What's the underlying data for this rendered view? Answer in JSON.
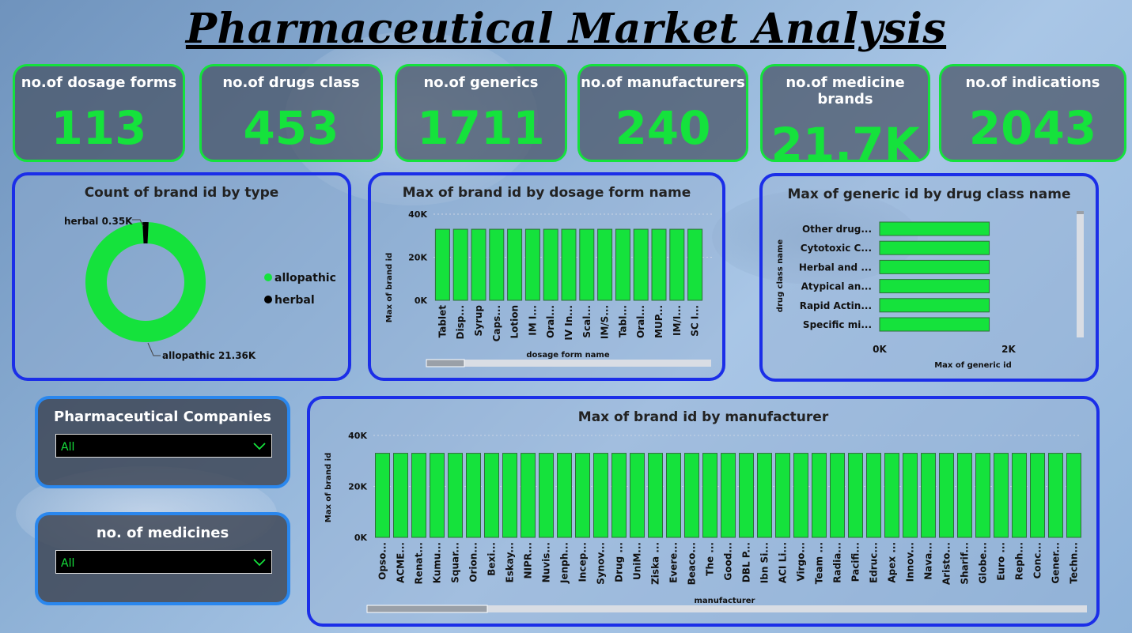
{
  "title": "Pharmaceutical Market Analysis",
  "colors": {
    "accent": "#15e23c",
    "panel_border": "#1b2ee8",
    "slicer_border": "#2a87ee"
  },
  "kpis": [
    {
      "label": "no.of dosage forms",
      "value": "113"
    },
    {
      "label": "no.of drugs class",
      "value": "453"
    },
    {
      "label": "no.of generics",
      "value": "1711"
    },
    {
      "label": "no.of manufacturers",
      "value": "240"
    },
    {
      "label": "no.of medicine brands",
      "value": "21.7K"
    },
    {
      "label": "no.of indications",
      "value": "2043"
    }
  ],
  "donut": {
    "title": "Count of brand id by type",
    "legend": [
      "allopathic",
      "herbal"
    ],
    "label_herbal": "herbal 0.35K",
    "label_allopathic": "allopathic 21.36K"
  },
  "dosage": {
    "title": "Max of brand id by dosage form name",
    "ylabel": "Max of brand id",
    "xlabel": "dosage form name",
    "ticks": [
      "40K",
      "20K",
      "0K"
    ]
  },
  "drugclass": {
    "title": "Max of generic id by drug class name",
    "ylabel": "drug class name",
    "xlabel": "Max of generic id",
    "ticks": [
      "0K",
      "2K"
    ]
  },
  "manufacturer": {
    "title": "Max of brand id by manufacturer",
    "ylabel": "Max of brand id",
    "xlabel": "manufacturer",
    "ticks": [
      "40K",
      "20K",
      "0K"
    ]
  },
  "slicers": [
    {
      "title": "Pharmaceutical Companies",
      "value": "All"
    },
    {
      "title": "no. of medicines",
      "value": "All"
    }
  ],
  "chart_data": [
    {
      "type": "pie",
      "title": "Count of brand id by type",
      "categories": [
        "allopathic",
        "herbal"
      ],
      "values": [
        21360,
        350
      ],
      "colors": [
        "#15e23c",
        "#000000"
      ],
      "legend": "right"
    },
    {
      "type": "bar",
      "title": "Max of brand id by dosage form name",
      "categories": [
        "Tablet",
        "Disp...",
        "Syrup",
        "Caps...",
        "Lotion",
        "IM I...",
        "Oral...",
        "IV In...",
        "Scal...",
        "IM/S...",
        "Tabl...",
        "Oral...",
        "MUP...",
        "IM/I...",
        "SC I..."
      ],
      "values": [
        33000,
        33000,
        33000,
        33000,
        33000,
        33000,
        33000,
        33000,
        33000,
        33000,
        33000,
        33000,
        33000,
        33000,
        33000
      ],
      "xlabel": "dosage form name",
      "ylabel": "Max of brand id",
      "ylim": [
        0,
        40000
      ]
    },
    {
      "type": "bar",
      "orientation": "horizontal",
      "title": "Max of generic id by drug class name",
      "categories": [
        "Other drug...",
        "Cytotoxic C...",
        "Herbal and ...",
        "Atypical an...",
        "Rapid Actin...",
        "Specific mi..."
      ],
      "values": [
        1700,
        1700,
        1700,
        1700,
        1700,
        1700
      ],
      "xlabel": "Max of generic id",
      "ylabel": "drug class name",
      "xlim": [
        0,
        2000
      ]
    },
    {
      "type": "bar",
      "title": "Max of brand id by manufacturer",
      "categories": [
        "Opso...",
        "ACME...",
        "Renat...",
        "Kumu...",
        "Squar...",
        "Orion...",
        "Bexi...",
        "Eskay...",
        "NIPR...",
        "Nuvis...",
        "Jenph...",
        "Incep...",
        "Synov...",
        "Drug ...",
        "UniM...",
        "Ziska ...",
        "Evere...",
        "Beaco...",
        "The ...",
        "Good...",
        "DBL P...",
        "Ibn Si...",
        "ACI Li...",
        "Virgo...",
        "Team ...",
        "Radia...",
        "Pacifi...",
        "Edruc...",
        "Apex ...",
        "Innov...",
        "Nava...",
        "Aristo...",
        "Sharif...",
        "Globe...",
        "Euro ...",
        "Reph...",
        "Conc...",
        "Gener...",
        "Techn..."
      ],
      "values": [
        33000,
        33000,
        33000,
        33000,
        33000,
        33000,
        33000,
        33000,
        33000,
        33000,
        33000,
        33000,
        33000,
        33000,
        33000,
        33000,
        33000,
        33000,
        33000,
        33000,
        33000,
        33000,
        33000,
        33000,
        33000,
        33000,
        33000,
        33000,
        33000,
        33000,
        33000,
        33000,
        33000,
        33000,
        33000,
        33000,
        33000,
        33000,
        33000
      ],
      "xlabel": "manufacturer",
      "ylabel": "Max of brand id",
      "ylim": [
        0,
        40000
      ]
    }
  ]
}
